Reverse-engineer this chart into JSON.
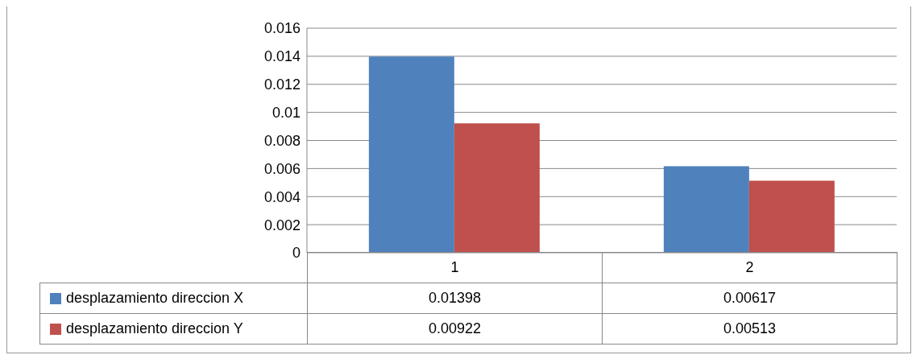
{
  "chart_data": {
    "type": "bar",
    "categories": [
      "1",
      "2"
    ],
    "series": [
      {
        "name": "desplazamiento direccion X",
        "color": "#4f81bd",
        "values": [
          0.01398,
          0.00617
        ]
      },
      {
        "name": "desplazamiento direccion Y",
        "color": "#c0504d",
        "values": [
          0.00922,
          0.00513
        ]
      }
    ],
    "ylim": [
      0,
      0.016
    ],
    "yticks": [
      0,
      0.002,
      0.004,
      0.006,
      0.008,
      0.01,
      0.012,
      0.014,
      0.016
    ],
    "grid": "y",
    "legend": "bottom",
    "data_labels": true
  }
}
